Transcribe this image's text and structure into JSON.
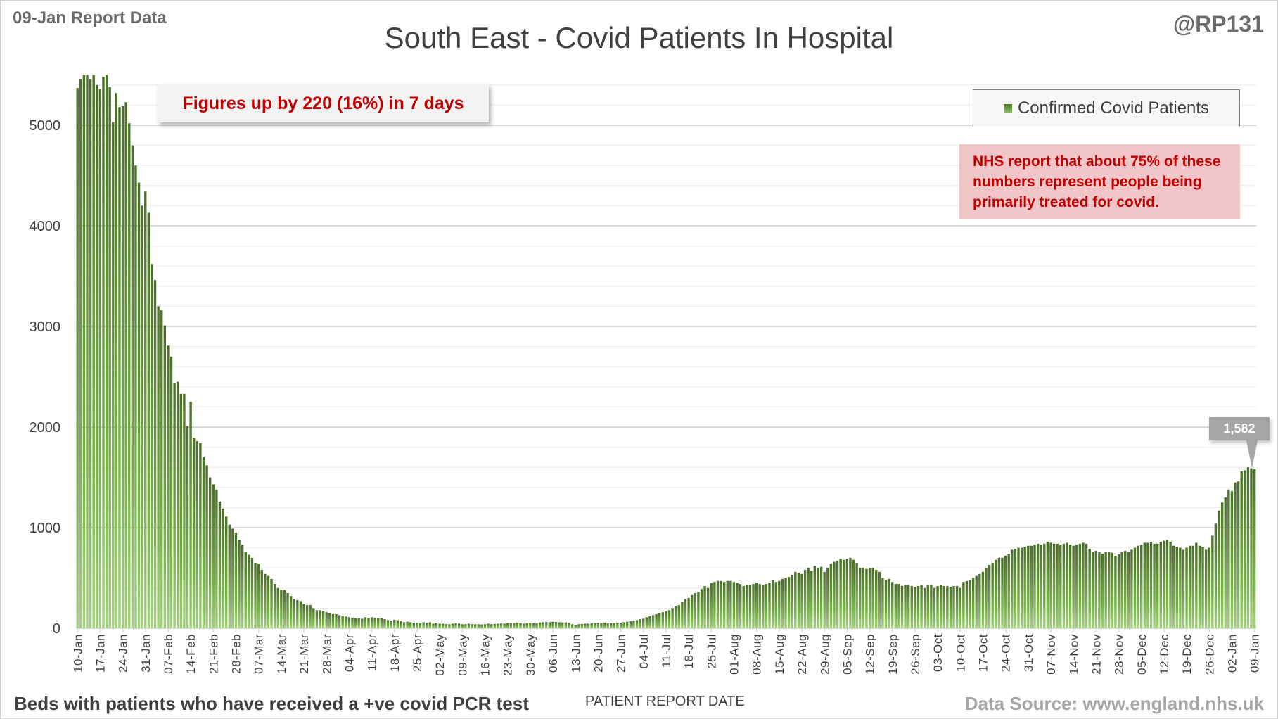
{
  "header": {
    "report_date": "09-Jan Report Data",
    "handle": "@RP131"
  },
  "annotation": "Figures up by 220 (16%) in 7 days",
  "note": "NHS report that about 75% of these numbers represent people being primarily treated for covid.",
  "footer": {
    "left": "Beds with patients who have received a +ve covid PCR test",
    "source": "Data Source: www.england.nhs.uk"
  },
  "colors": {
    "bar_top": "#4a6e2a",
    "bar_bottom": "#9fcf7a",
    "title": "#404040",
    "annotation": "#c00000",
    "note_bg": "#f2c5c8"
  },
  "chart_data": {
    "type": "bar",
    "title": "South East - Covid Patients In Hospital",
    "xlabel": "PATIENT REPORT DATE",
    "ylabel": "",
    "ylim": [
      0,
      5500
    ],
    "yticks": [
      0,
      1000,
      2000,
      3000,
      4000,
      5000
    ],
    "grid": true,
    "legend": {
      "position": "top-right",
      "entries": [
        "Confirmed Covid Patients"
      ]
    },
    "x_start": "10-Jan",
    "x_end": "09-Jan",
    "xtick_labels": [
      "10-Jan",
      "17-Jan",
      "24-Jan",
      "31-Jan",
      "07-Feb",
      "14-Feb",
      "21-Feb",
      "28-Feb",
      "07-Mar",
      "14-Mar",
      "21-Mar",
      "28-Mar",
      "04-Apr",
      "11-Apr",
      "18-Apr",
      "25-Apr",
      "02-May",
      "09-May",
      "16-May",
      "23-May",
      "30-May",
      "06-Jun",
      "13-Jun",
      "20-Jun",
      "27-Jun",
      "04-Jul",
      "11-Jul",
      "18-Jul",
      "25-Jul",
      "01-Aug",
      "08-Aug",
      "15-Aug",
      "22-Aug",
      "29-Aug",
      "05-Sep",
      "12-Sep",
      "19-Sep",
      "26-Sep",
      "03-Oct",
      "10-Oct",
      "17-Oct",
      "24-Oct",
      "31-Oct",
      "07-Nov",
      "14-Nov",
      "21-Nov",
      "28-Nov",
      "05-Dec",
      "12-Dec",
      "19-Dec",
      "26-Dec",
      "02-Jan",
      "09-Jan"
    ],
    "last_value_label": "1,582",
    "series": [
      {
        "name": "Confirmed Covid Patients",
        "values": [
          5370,
          5460,
          5500,
          5500,
          5460,
          5500,
          5400,
          5360,
          5480,
          5500,
          5380,
          5030,
          5320,
          5180,
          5190,
          5230,
          5020,
          4800,
          4600,
          4430,
          4200,
          4340,
          4130,
          3620,
          3460,
          3200,
          3160,
          3010,
          2810,
          2700,
          2440,
          2450,
          2330,
          2330,
          2010,
          2250,
          1890,
          1860,
          1840,
          1700,
          1620,
          1500,
          1430,
          1380,
          1260,
          1190,
          1110,
          1030,
          990,
          950,
          880,
          830,
          760,
          730,
          700,
          650,
          640,
          580,
          540,
          520,
          490,
          440,
          400,
          380,
          380,
          350,
          320,
          290,
          280,
          270,
          240,
          230,
          230,
          200,
          180,
          180,
          170,
          160,
          150,
          140,
          140,
          130,
          120,
          115,
          110,
          105,
          100,
          100,
          95,
          110,
          105,
          110,
          105,
          100,
          100,
          90,
          80,
          75,
          85,
          80,
          70,
          60,
          65,
          60,
          50,
          55,
          50,
          60,
          55,
          60,
          45,
          50,
          45,
          45,
          40,
          40,
          45,
          50,
          45,
          40,
          40,
          45,
          40,
          40,
          40,
          38,
          40,
          45,
          40,
          42,
          45,
          48,
          45,
          50,
          50,
          52,
          55,
          50,
          45,
          50,
          55,
          55,
          50,
          58,
          60,
          62,
          60,
          65,
          62,
          60,
          58,
          58,
          55,
          40,
          35,
          40,
          42,
          45,
          45,
          48,
          50,
          55,
          52,
          55,
          50,
          50,
          52,
          55,
          55,
          60,
          65,
          70,
          75,
          80,
          90,
          95,
          110,
          120,
          130,
          140,
          150,
          160,
          170,
          180,
          200,
          220,
          230,
          260,
          290,
          300,
          330,
          350,
          360,
          390,
          420,
          400,
          450,
          460,
          470,
          470,
          460,
          470,
          470,
          460,
          450,
          440,
          420,
          430,
          430,
          440,
          450,
          440,
          430,
          440,
          450,
          480,
          460,
          470,
          490,
          500,
          510,
          530,
          560,
          550,
          540,
          580,
          600,
          570,
          620,
          600,
          610,
          560,
          600,
          640,
          660,
          670,
          690,
          680,
          690,
          700,
          680,
          650,
          600,
          600,
          590,
          600,
          600,
          580,
          560,
          500,
          480,
          490,
          460,
          440,
          440,
          420,
          430,
          430,
          420,
          410,
          420,
          430,
          400,
          430,
          430,
          400,
          420,
          430,
          420,
          420,
          410,
          420,
          420,
          400,
          460,
          470,
          480,
          500,
          520,
          540,
          560,
          600,
          630,
          650,
          680,
          700,
          700,
          720,
          740,
          780,
          790,
          800,
          800,
          810,
          820,
          820,
          830,
          840,
          830,
          840,
          860,
          850,
          840,
          840,
          830,
          840,
          850,
          830,
          820,
          830,
          840,
          850,
          840,
          790,
          760,
          770,
          760,
          740,
          760,
          760,
          750,
          720,
          740,
          760,
          770,
          760,
          780,
          800,
          820,
          830,
          850,
          850,
          860,
          840,
          840,
          860,
          870,
          880,
          860,
          820,
          810,
          800,
          780,
          800,
          820,
          820,
          850,
          820,
          810,
          780,
          800,
          920,
          1040,
          1170,
          1250,
          1300,
          1380,
          1362,
          1450,
          1460,
          1560,
          1570,
          1600,
          1590,
          1582
        ]
      }
    ]
  }
}
